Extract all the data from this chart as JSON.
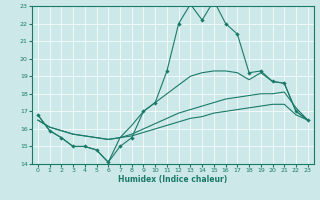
{
  "xlabel": "Humidex (Indice chaleur)",
  "xlim": [
    -0.5,
    23.5
  ],
  "ylim": [
    14,
    23
  ],
  "yticks": [
    14,
    15,
    16,
    17,
    18,
    19,
    20,
    21,
    22,
    23
  ],
  "xticks": [
    0,
    1,
    2,
    3,
    4,
    5,
    6,
    7,
    8,
    9,
    10,
    11,
    12,
    13,
    14,
    15,
    16,
    17,
    18,
    19,
    20,
    21,
    22,
    23
  ],
  "bg_color": "#cde8e8",
  "line_color": "#1a7a6a",
  "grid_color": "#ffffff",
  "line1_x": [
    0,
    1,
    2,
    3,
    4,
    5,
    6,
    7,
    8,
    9,
    10,
    11,
    12,
    13,
    14,
    15,
    16,
    17,
    18,
    19,
    20,
    21,
    22,
    23
  ],
  "line1_y": [
    16.8,
    15.9,
    15.5,
    15.0,
    15.0,
    14.8,
    14.1,
    15.0,
    15.5,
    17.0,
    17.5,
    19.3,
    22.0,
    23.1,
    22.2,
    23.3,
    22.0,
    21.4,
    19.2,
    19.3,
    18.7,
    18.6,
    17.0,
    16.5
  ],
  "line2_x": [
    0,
    1,
    2,
    3,
    4,
    5,
    6,
    7,
    8,
    9,
    10,
    11,
    12,
    13,
    14,
    15,
    16,
    17,
    18,
    19,
    20,
    21,
    22,
    23
  ],
  "line2_y": [
    16.8,
    15.9,
    15.5,
    15.0,
    15.0,
    14.8,
    14.1,
    15.5,
    16.2,
    17.0,
    17.5,
    18.0,
    18.5,
    19.0,
    19.2,
    19.3,
    19.3,
    19.2,
    18.8,
    19.2,
    18.7,
    18.6,
    17.0,
    16.5
  ],
  "line3_x": [
    0,
    1,
    2,
    3,
    4,
    5,
    6,
    7,
    8,
    9,
    10,
    11,
    12,
    13,
    14,
    15,
    16,
    17,
    18,
    19,
    20,
    21,
    22,
    23
  ],
  "line3_y": [
    16.5,
    16.1,
    15.9,
    15.7,
    15.6,
    15.5,
    15.4,
    15.5,
    15.7,
    16.0,
    16.3,
    16.6,
    16.9,
    17.1,
    17.3,
    17.5,
    17.7,
    17.8,
    17.9,
    18.0,
    18.0,
    18.1,
    17.2,
    16.5
  ],
  "line4_x": [
    0,
    1,
    2,
    3,
    4,
    5,
    6,
    7,
    8,
    9,
    10,
    11,
    12,
    13,
    14,
    15,
    16,
    17,
    18,
    19,
    20,
    21,
    22,
    23
  ],
  "line4_y": [
    16.5,
    16.1,
    15.9,
    15.7,
    15.6,
    15.5,
    15.4,
    15.5,
    15.6,
    15.8,
    16.0,
    16.2,
    16.4,
    16.6,
    16.7,
    16.9,
    17.0,
    17.1,
    17.2,
    17.3,
    17.4,
    17.4,
    16.8,
    16.5
  ]
}
